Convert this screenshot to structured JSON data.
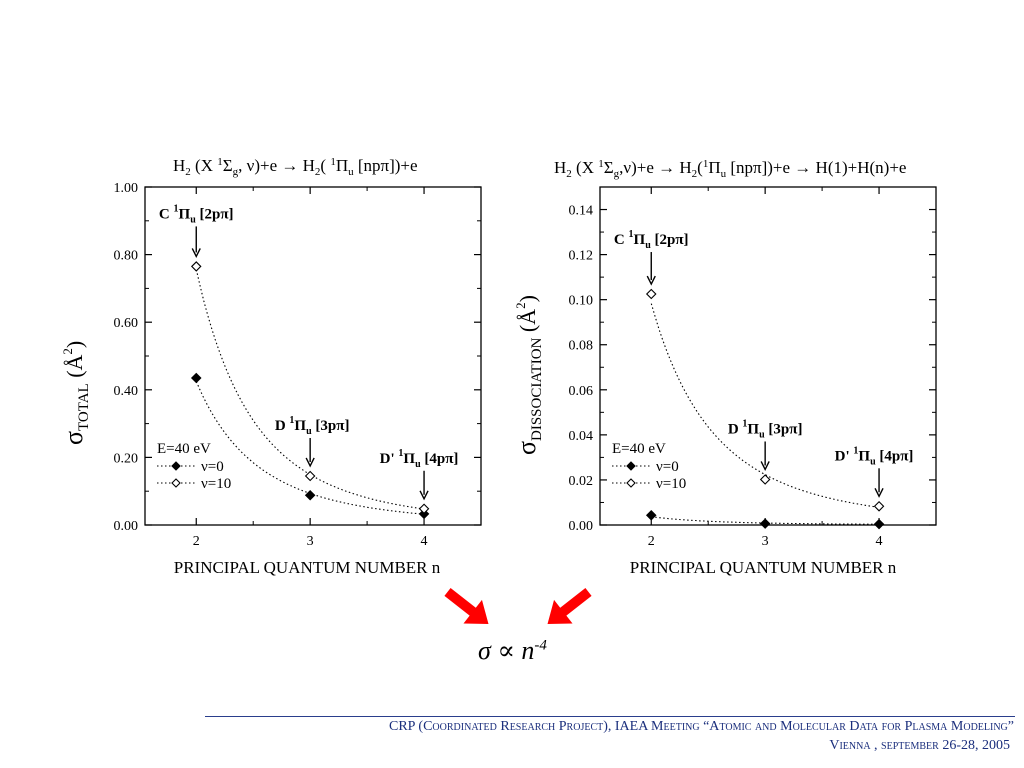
{
  "chart_data": [
    {
      "type": "scatter",
      "title": "H2 (X 1Σg, ν)+e → H2( 1Πu [npπ])+e",
      "xlabel": "PRINCIPAL QUANTUM NUMBER n",
      "ylabel": "σTOTAL (Å2)",
      "xlim": [
        1.55,
        4.5
      ],
      "ylim": [
        0,
        1.0
      ],
      "xticks": [
        2,
        3,
        4
      ],
      "yticks": [
        0,
        0.2,
        0.4,
        0.6,
        0.8,
        1.0
      ],
      "ytick_labels": [
        "0.00",
        "0.20",
        "0.40",
        "0.60",
        "0.80",
        "1.00"
      ],
      "legend_title": "E=40 eV",
      "legend_position": "bottom-left",
      "series": [
        {
          "name": "ν=0",
          "marker": "filled-diamond",
          "x": [
            2,
            3,
            4
          ],
          "y": [
            0.435,
            0.088,
            0.033
          ]
        },
        {
          "name": "ν=10",
          "marker": "open-diamond",
          "x": [
            2,
            3,
            4
          ],
          "y": [
            0.765,
            0.145,
            0.048
          ]
        }
      ],
      "annotations": [
        {
          "label": "C 1Πu [2pπ]",
          "x": 2,
          "y": 0.765
        },
        {
          "label": "D 1Πu [3pπ]",
          "x": 3,
          "y": 0.145
        },
        {
          "label": "D' 1Πu [4pπ]",
          "x": 4,
          "y": 0.048
        }
      ]
    },
    {
      "type": "scatter",
      "title": "H2 (X 1Σg,ν)+e → H2(1Πu [npπ])+e → H(1)+H(n)+e",
      "xlabel": "PRINCIPAL QUANTUM NUMBER n",
      "ylabel": "σDISSOCIATION (Å2)",
      "xlim": [
        1.55,
        4.5
      ],
      "ylim": [
        0,
        0.15
      ],
      "xticks": [
        2,
        3,
        4
      ],
      "yticks": [
        0,
        0.02,
        0.04,
        0.06,
        0.08,
        0.1,
        0.12,
        0.14
      ],
      "ytick_labels": [
        "0.00",
        "0.02",
        "0.04",
        "0.06",
        "0.08",
        "0.10",
        "0.12",
        "0.14"
      ],
      "legend_title": "E=40 eV",
      "legend_position": "bottom-left",
      "series": [
        {
          "name": "ν=0",
          "marker": "filled-diamond",
          "x": [
            2,
            3,
            4
          ],
          "y": [
            0.0043,
            0.0006,
            0.0004
          ]
        },
        {
          "name": "ν=10",
          "marker": "open-diamond",
          "x": [
            2,
            3,
            4
          ],
          "y": [
            0.1025,
            0.0202,
            0.0083
          ]
        }
      ],
      "annotations": [
        {
          "label": "C 1Πu [2pπ]",
          "x": 2,
          "y": 0.1025
        },
        {
          "label": "D 1Πu [3pπ]",
          "x": 3,
          "y": 0.0202
        },
        {
          "label": "D' 1Πu [4pπ]",
          "x": 4,
          "y": 0.0083
        }
      ]
    }
  ],
  "formula": {
    "base": "σ ∝ n",
    "exponent": "-4"
  },
  "arrow_color": "#ff0000",
  "footer": {
    "line1": "CRP (Coordinated Research Project), IAEA Meeting “Atomic and Molecular Data for Plasma Modeling”",
    "line2": "Vienna , september 26-28, 2005",
    "color": "#1a2e7c"
  }
}
